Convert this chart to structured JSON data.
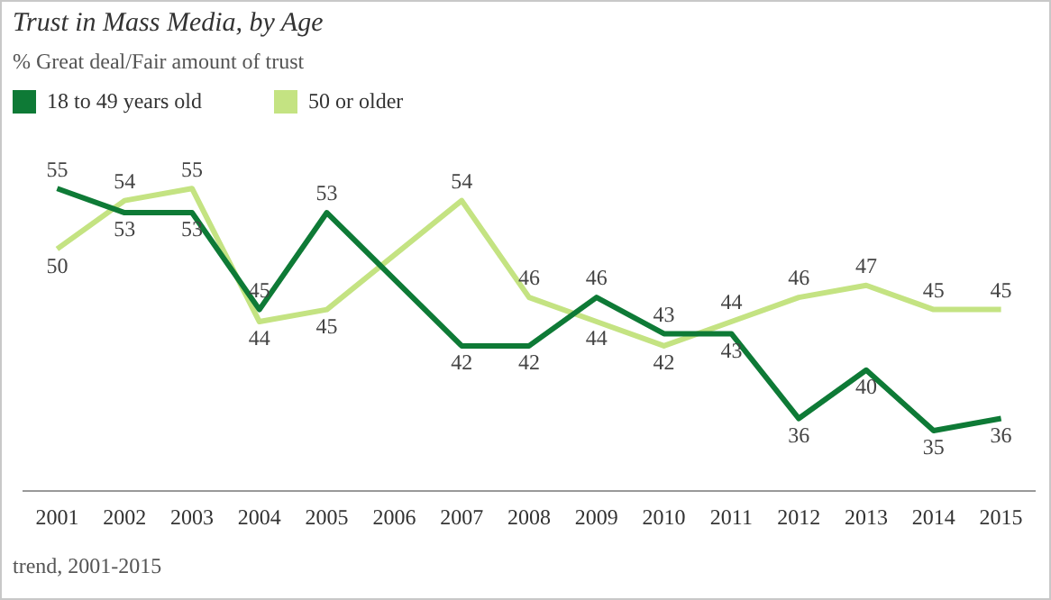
{
  "chart_data": {
    "type": "line",
    "title": "Trust in Mass Media, by Age",
    "subtitle": "% Great deal/Fair amount of trust",
    "categories": [
      "2001",
      "2002",
      "2003",
      "2004",
      "2005",
      "2006",
      "2007",
      "2008",
      "2009",
      "2010",
      "2011",
      "2012",
      "2013",
      "2014",
      "2015"
    ],
    "series": [
      {
        "name": "18 to 49 years old",
        "color": "#0e7a36",
        "values": [
          55,
          53,
          53,
          45,
          53,
          null,
          42,
          42,
          46,
          43,
          43,
          36,
          40,
          35,
          36
        ]
      },
      {
        "name": "50 or older",
        "color": "#c4e382",
        "values": [
          50,
          54,
          55,
          44,
          45,
          null,
          54,
          46,
          44,
          42,
          44,
          46,
          47,
          45,
          45
        ]
      }
    ],
    "relative": false,
    "data_labels": true,
    "legend": "top left",
    "grid": false,
    "marker": "none",
    "line_style": "solid",
    "annotations": [
      "trend, 2001-2015"
    ]
  }
}
